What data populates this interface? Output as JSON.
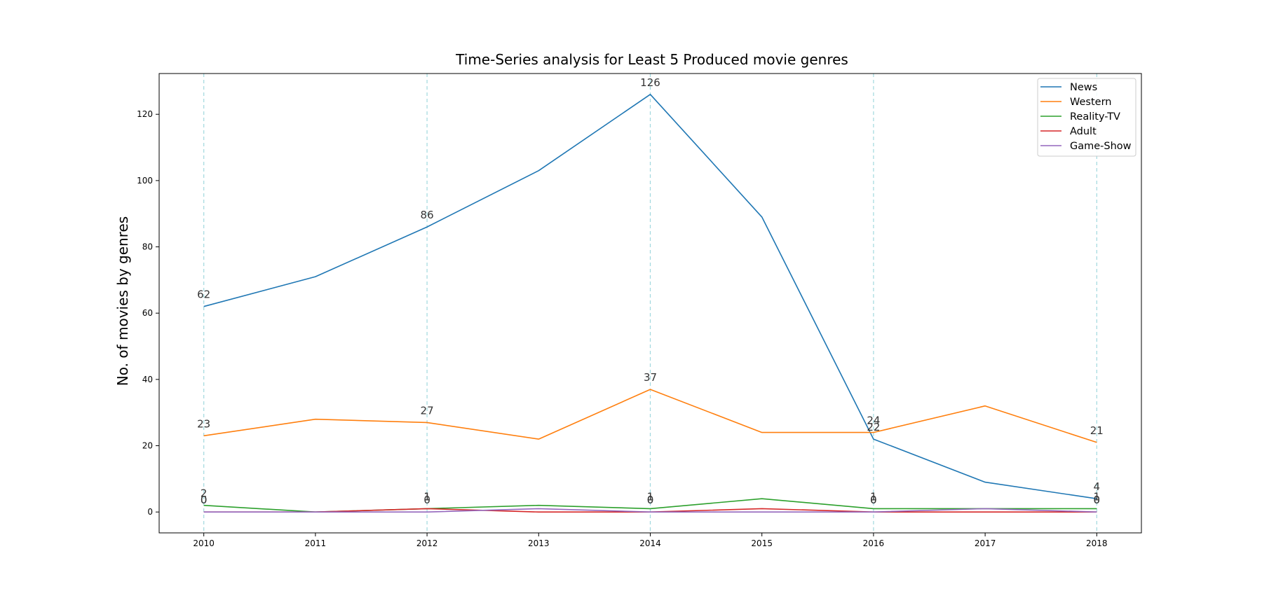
{
  "chart_data": {
    "type": "line",
    "title": "Time-Series analysis for Least 5 Produced movie genres",
    "xlabel": "",
    "ylabel": "No. of movies by genres",
    "x": [
      2010,
      2011,
      2012,
      2013,
      2014,
      2015,
      2016,
      2017,
      2018
    ],
    "xlim": [
      2009.6,
      2018.4
    ],
    "ylim": [
      -6.3,
      132.3
    ],
    "yticks": [
      0,
      20,
      40,
      60,
      80,
      100,
      120
    ],
    "grid": "dashed vertical lines at 2010, 2012, 2014, 2016, 2018",
    "legend_position": "top-right",
    "label_years": [
      2010,
      2012,
      2014,
      2016,
      2018
    ],
    "series": [
      {
        "name": "News",
        "color": "#1f77b4",
        "values": [
          62,
          71,
          86,
          103,
          126,
          89,
          22,
          9,
          4
        ]
      },
      {
        "name": "Western",
        "color": "#ff7f0e",
        "values": [
          23,
          28,
          27,
          22,
          37,
          24,
          24,
          32,
          21
        ]
      },
      {
        "name": "Reality-TV",
        "color": "#2ca02c",
        "values": [
          2,
          0,
          1,
          2,
          1,
          4,
          1,
          1,
          1
        ]
      },
      {
        "name": "Adult",
        "color": "#d62728",
        "values": [
          0,
          0,
          1,
          0,
          0,
          1,
          0,
          0,
          0
        ]
      },
      {
        "name": "Game-Show",
        "color": "#9467bd",
        "values": [
          0,
          0,
          0,
          1,
          0,
          0,
          0,
          1,
          0
        ]
      }
    ]
  }
}
